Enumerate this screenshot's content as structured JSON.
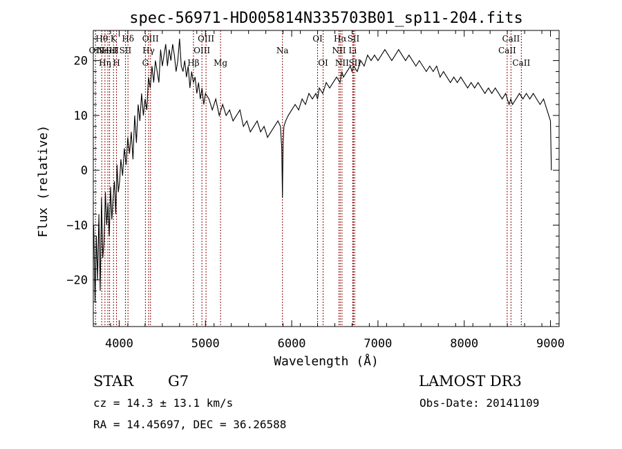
{
  "chart_data": {
    "type": "line",
    "title": "spec-56971-HD005814N335703B01_sp11-204.fits",
    "xlabel": "Wavelength (Å)",
    "ylabel": "Flux (relative)",
    "xlim": [
      3700,
      9100
    ],
    "ylim": [
      -28.5,
      25.5
    ],
    "x_ticks": [
      4000,
      5000,
      6000,
      7000,
      8000,
      9000
    ],
    "x_tick_labels": [
      "4000",
      "5000",
      "6000",
      "7000",
      "8000",
      "9000"
    ],
    "y_ticks": [
      -20,
      -10,
      0,
      10,
      20
    ],
    "y_tick_labels": [
      "−20",
      "−10",
      "0",
      "10",
      "20"
    ],
    "grid": false,
    "legend": "none",
    "line_color": "#000000",
    "marker_line_color": "#8b0000",
    "series": [
      {
        "x": [
          3705,
          3720,
          3735,
          3750,
          3765,
          3780,
          3795,
          3810,
          3825,
          3840,
          3855,
          3870,
          3885,
          3900,
          3915,
          3930,
          3945,
          3960,
          3975,
          3990,
          4005,
          4020,
          4040,
          4060,
          4080,
          4100,
          4120,
          4140,
          4160,
          4180,
          4200,
          4220,
          4240,
          4260,
          4280,
          4300,
          4320,
          4340,
          4360,
          4380,
          4400,
          4420,
          4440,
          4460,
          4480,
          4500,
          4520,
          4540,
          4560,
          4580,
          4600,
          4620,
          4640,
          4660,
          4680,
          4700,
          4720,
          4740,
          4760,
          4780,
          4800,
          4820,
          4840,
          4860,
          4880,
          4900,
          4920,
          4940,
          4960,
          4980,
          5000,
          5040,
          5080,
          5120,
          5160,
          5180,
          5200,
          5240,
          5280,
          5320,
          5360,
          5400,
          5440,
          5480,
          5520,
          5560,
          5600,
          5640,
          5680,
          5720,
          5760,
          5800,
          5840,
          5870,
          5885,
          5893,
          5900,
          5910,
          5930,
          5960,
          6000,
          6040,
          6080,
          6120,
          6160,
          6200,
          6240,
          6280,
          6300,
          6320,
          6360,
          6400,
          6440,
          6480,
          6520,
          6560,
          6580,
          6600,
          6640,
          6680,
          6700,
          6720,
          6760,
          6800,
          6840,
          6880,
          6920,
          6960,
          7000,
          7040,
          7080,
          7120,
          7160,
          7200,
          7240,
          7280,
          7320,
          7360,
          7400,
          7440,
          7480,
          7520,
          7560,
          7600,
          7640,
          7680,
          7720,
          7760,
          7800,
          7840,
          7880,
          7920,
          7960,
          8000,
          8040,
          8080,
          8120,
          8160,
          8200,
          8240,
          8280,
          8320,
          8360,
          8400,
          8440,
          8480,
          8500,
          8520,
          8540,
          8560,
          8600,
          8640,
          8680,
          8720,
          8760,
          8800,
          8840,
          8880,
          8920,
          8960,
          9000,
          9010
        ],
        "y": [
          -10,
          -24,
          -12,
          -20,
          -8,
          -22,
          -5,
          -16,
          -13,
          -4,
          -10,
          -6,
          -12,
          -3,
          -9,
          -5,
          -2,
          -8,
          1,
          -4,
          -2,
          2,
          -1,
          4,
          1,
          6,
          3,
          7,
          2,
          10,
          5,
          12,
          9,
          14,
          10,
          13,
          11,
          17,
          15,
          19,
          16,
          20,
          18,
          16,
          22,
          19,
          21,
          23,
          19,
          22,
          20,
          23,
          21,
          18,
          20,
          24,
          19,
          18,
          20,
          17,
          19,
          15,
          18,
          16,
          17,
          14,
          16,
          13,
          15,
          12,
          14,
          13,
          11,
          13,
          10,
          11,
          12,
          10,
          11,
          9,
          10,
          11,
          8,
          9,
          7,
          8,
          9,
          7,
          8,
          6,
          7,
          8,
          9,
          8,
          4,
          -5,
          5,
          8,
          9,
          10,
          11,
          12,
          11,
          13,
          12,
          14,
          13,
          14,
          13,
          15,
          14,
          16,
          15,
          16,
          17,
          16,
          18,
          17,
          18,
          19,
          18,
          19,
          18,
          20,
          19,
          21,
          20,
          21,
          20,
          21,
          22,
          21,
          20,
          21,
          22,
          21,
          20,
          21,
          20,
          19,
          20,
          19,
          18,
          19,
          18,
          19,
          17,
          18,
          17,
          16,
          17,
          16,
          17,
          16,
          15,
          16,
          15,
          16,
          15,
          14,
          15,
          14,
          15,
          14,
          13,
          14,
          13,
          12,
          13,
          12,
          13,
          14,
          13,
          14,
          13,
          14,
          13,
          12,
          13,
          11,
          9,
          0
        ]
      }
    ],
    "lines": [
      {
        "x": 3726,
        "label": "OII",
        "row": 1
      },
      {
        "x": 3798,
        "label": "Hθ",
        "row": 0
      },
      {
        "x": 3835,
        "label": "Hη",
        "row": 2
      },
      {
        "x": 3869,
        "label": "NeIII",
        "row": 1
      },
      {
        "x": 3889,
        "label": "HeI",
        "row": 1
      },
      {
        "x": 3934,
        "label": "K",
        "row": 0
      },
      {
        "x": 3969,
        "label": "H",
        "row": 2
      },
      {
        "x": 4072,
        "label": "SII",
        "row": 1
      },
      {
        "x": 4102,
        "label": "Hδ",
        "row": 0
      },
      {
        "x": 4304,
        "label": "G",
        "row": 2
      },
      {
        "x": 4341,
        "label": "Hγ",
        "row": 1
      },
      {
        "x": 4363,
        "label": "OIII",
        "row": 0
      },
      {
        "x": 4861,
        "label": "Hβ",
        "row": 2
      },
      {
        "x": 4959,
        "label": "OIII",
        "row": 1
      },
      {
        "x": 5007,
        "label": "OIII",
        "row": 0
      },
      {
        "x": 5175,
        "label": "Mg",
        "row": 2
      },
      {
        "x": 5893,
        "label": "Na",
        "row": 1
      },
      {
        "x": 6300,
        "label": "OI",
        "row": 0
      },
      {
        "x": 6364,
        "label": "OI",
        "row": 2
      },
      {
        "x": 6548,
        "label": "NII",
        "row": 1
      },
      {
        "x": 6563,
        "label": "Hα",
        "row": 0
      },
      {
        "x": 6583,
        "label": "NII",
        "row": 2
      },
      {
        "x": 6707,
        "label": "Li",
        "row": 1
      },
      {
        "x": 6716,
        "label": "SII",
        "row": 0
      },
      {
        "x": 6731,
        "label": "SII",
        "row": 2
      },
      {
        "x": 8498,
        "label": "CaII",
        "row": 1
      },
      {
        "x": 8542,
        "label": "CaII",
        "row": 0
      },
      {
        "x": 8662,
        "label": "CaII",
        "row": 2
      }
    ]
  },
  "info": {
    "object_class": "STAR",
    "subclass": "G7",
    "survey": "LAMOST DR3",
    "cz": "cz = 14.3 ± 13.1 km/s",
    "obs_date": "Obs-Date: 20141109",
    "coords": "RA =  14.45697, DEC =  36.26588"
  }
}
